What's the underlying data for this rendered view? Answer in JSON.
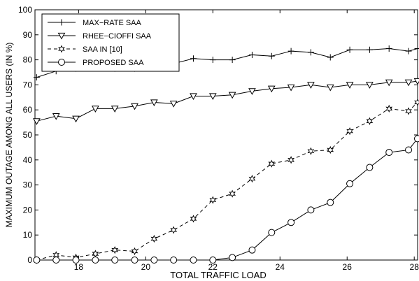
{
  "chart_data": {
    "type": "line",
    "title": "",
    "xlabel": "TOTAL TRAFFIC LOAD",
    "ylabel": "MAXIMUM OUTAGE AMONG ALL USERS (IN %)",
    "xlim": [
      16.7,
      28.1
    ],
    "ylim": [
      0,
      100
    ],
    "xticks": [
      18,
      20,
      22,
      24,
      26,
      28
    ],
    "yticks": [
      0,
      10,
      20,
      30,
      40,
      50,
      60,
      70,
      80,
      90,
      100
    ],
    "grid": false,
    "legend_position": "top-left",
    "x": [
      16.75,
      17.33,
      17.92,
      18.5,
      19.08,
      19.67,
      20.25,
      20.83,
      21.42,
      22.0,
      22.58,
      23.17,
      23.75,
      24.33,
      24.92,
      25.5,
      26.08,
      26.67,
      27.25,
      27.83,
      28.1
    ],
    "series": [
      {
        "name": "MAX−RATE SAA",
        "marker": "plus",
        "dash": "solid",
        "values": [
          73,
          75.5,
          76.5,
          77,
          76.5,
          76.5,
          78,
          78.5,
          80.5,
          80,
          80,
          82,
          81.5,
          83.5,
          83,
          81,
          84,
          84,
          84.5,
          83.5,
          84.5
        ]
      },
      {
        "name": "RHEE−CIOFFI SAA",
        "marker": "triangle-down",
        "dash": "solid",
        "values": [
          55.5,
          57.5,
          56.5,
          60.5,
          60.5,
          61.5,
          63,
          62.5,
          65.5,
          65.5,
          66,
          67.5,
          68.5,
          69,
          70,
          69,
          70,
          70,
          71,
          71,
          71.5
        ]
      },
      {
        "name": "SAA IN [10]",
        "marker": "star",
        "dash": "dashed",
        "values": [
          0,
          2,
          1,
          2.5,
          4,
          3.5,
          8.5,
          12,
          16.5,
          24,
          26.5,
          32.5,
          38.5,
          40,
          43.5,
          44,
          51.5,
          55.5,
          60.5,
          59.5,
          63
        ]
      },
      {
        "name": "PROPOSED SAA",
        "marker": "circle",
        "dash": "solid",
        "values": [
          0,
          0,
          0,
          0,
          0,
          0,
          0,
          0,
          0,
          0,
          1,
          4,
          11,
          15,
          20,
          23,
          30.5,
          37,
          43,
          44,
          48.5
        ]
      }
    ]
  }
}
